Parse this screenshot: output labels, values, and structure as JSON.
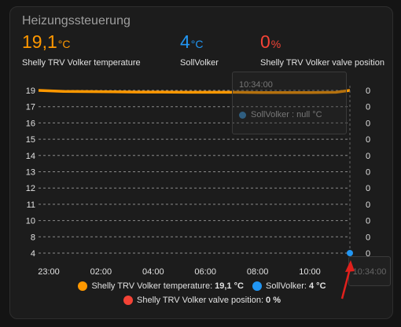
{
  "card": {
    "title": "Heizungssteuerung"
  },
  "stats": [
    {
      "value": "19,1",
      "unit": "°C",
      "label": "Shelly TRV Volker temperature",
      "color": "#ff9800"
    },
    {
      "value": "4",
      "unit": "°C",
      "label": "SollVolker",
      "color": "#2196f3"
    },
    {
      "value": "0",
      "unit": "%",
      "label": "Shelly TRV Volker valve position",
      "color": "#f44336"
    }
  ],
  "tooltip": {
    "time": "10:34:00",
    "line": "SollVolker : null °C",
    "bottom_time": "10:34:00"
  },
  "legend": {
    "temperature": {
      "label": "Shelly TRV Volker temperature:",
      "value": "19,1 °C",
      "color": "#ff9800"
    },
    "soll": {
      "label": "SollVolker:",
      "value": "4 °C",
      "color": "#2196f3"
    },
    "valve": {
      "label": "Shelly TRV Volker valve position:",
      "value": "0 %",
      "color": "#f44336"
    }
  },
  "annotation": {
    "arrow_color": "#e0201c"
  },
  "chart_data": {
    "type": "line",
    "x_ticks": [
      "23:00",
      "02:00",
      "04:00",
      "06:00",
      "08:00",
      "10:00"
    ],
    "y_left_ticks": [
      "19",
      "17",
      "16",
      "15",
      "14",
      "13",
      "12",
      "11",
      "10",
      "8",
      "4"
    ],
    "y_right_ticks": [
      "0",
      "0",
      "0",
      "0",
      "0",
      "0",
      "0",
      "0",
      "0",
      "0",
      "0"
    ],
    "series": [
      {
        "name": "Shelly TRV Volker temperature",
        "color": "#ff9800",
        "x": [
          "22:00",
          "23:00",
          "00:00",
          "01:00",
          "02:00",
          "03:00",
          "04:00",
          "05:00",
          "06:00",
          "07:00",
          "08:00",
          "09:00",
          "10:00",
          "10:34"
        ],
        "values": [
          19.1,
          18.9,
          18.85,
          18.8,
          18.75,
          18.75,
          18.7,
          18.7,
          18.7,
          18.65,
          18.65,
          18.65,
          18.7,
          19.1
        ]
      },
      {
        "name": "SollVolker",
        "color": "#2196f3",
        "x": [
          "10:34"
        ],
        "values": [
          4
        ]
      },
      {
        "name": "Shelly TRV Volker valve position",
        "color": "#f44336",
        "x": [],
        "values": []
      }
    ],
    "grid": true,
    "legend_position": "bottom"
  }
}
